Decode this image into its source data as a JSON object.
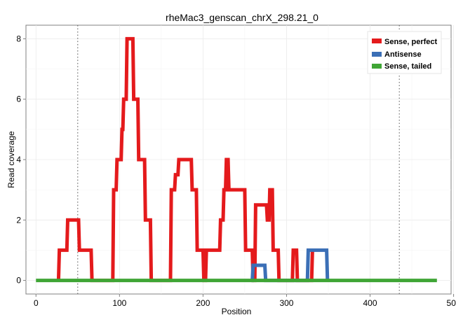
{
  "chart_data": {
    "type": "line",
    "title": "rheMac3_genscan_chrX_298.21_0",
    "xlabel": "Position",
    "ylabel": "Read coverage",
    "xlim": [
      -12,
      497
    ],
    "ylim": [
      -0.45,
      8.45
    ],
    "x_ticks": [
      0,
      100,
      200,
      300,
      400,
      500
    ],
    "y_ticks": [
      0,
      2,
      4,
      6,
      8
    ],
    "grid": true,
    "legend_position": "top-right",
    "vlines": [
      50,
      435
    ],
    "series": [
      {
        "name": "Sense, perfect",
        "color": "#e41a1c",
        "x": [
          27,
          28,
          37,
          38,
          51,
          52,
          66,
          67,
          92,
          93,
          96,
          97,
          102,
          103,
          104,
          105,
          108,
          109,
          116,
          117,
          122,
          123,
          130,
          131,
          137,
          138,
          161,
          162,
          166,
          167,
          170,
          171,
          186,
          187,
          192,
          193,
          200,
          201,
          203,
          204,
          220,
          221,
          224,
          225,
          227,
          228,
          230,
          231,
          250,
          251,
          259,
          260,
          262,
          263,
          276,
          277,
          279,
          280,
          283,
          284,
          290,
          291,
          307,
          308,
          312,
          313,
          330,
          331
        ],
        "y": [
          0,
          1,
          1,
          2,
          2,
          1,
          1,
          0,
          0,
          3,
          3,
          4,
          4,
          5,
          5,
          6,
          6,
          8,
          8,
          6,
          6,
          4,
          4,
          2,
          2,
          0,
          0,
          3,
          3,
          3.5,
          3.5,
          4,
          4,
          3,
          3,
          1,
          1,
          0,
          0,
          1,
          1,
          2,
          2,
          3,
          3,
          4,
          4,
          3,
          3,
          1,
          1,
          0,
          0,
          2.5,
          2.5,
          2,
          2,
          3,
          3,
          1,
          1,
          0,
          0,
          1,
          1,
          0,
          0,
          1
        ]
      },
      {
        "name": "Antisense",
        "color": "#3b6fb6",
        "x": [
          258,
          259,
          260,
          261,
          262,
          273,
          274,
          275,
          325,
          326,
          327,
          347,
          348,
          349
        ],
        "y": [
          0,
          0,
          0.5,
          0.5,
          0.5,
          0.5,
          0.5,
          0,
          0,
          1,
          1,
          1,
          1,
          0
        ]
      },
      {
        "name": "Sense, tailed",
        "color": "#3fa535",
        "x": [
          0,
          480
        ],
        "y": [
          0,
          0
        ]
      }
    ]
  }
}
